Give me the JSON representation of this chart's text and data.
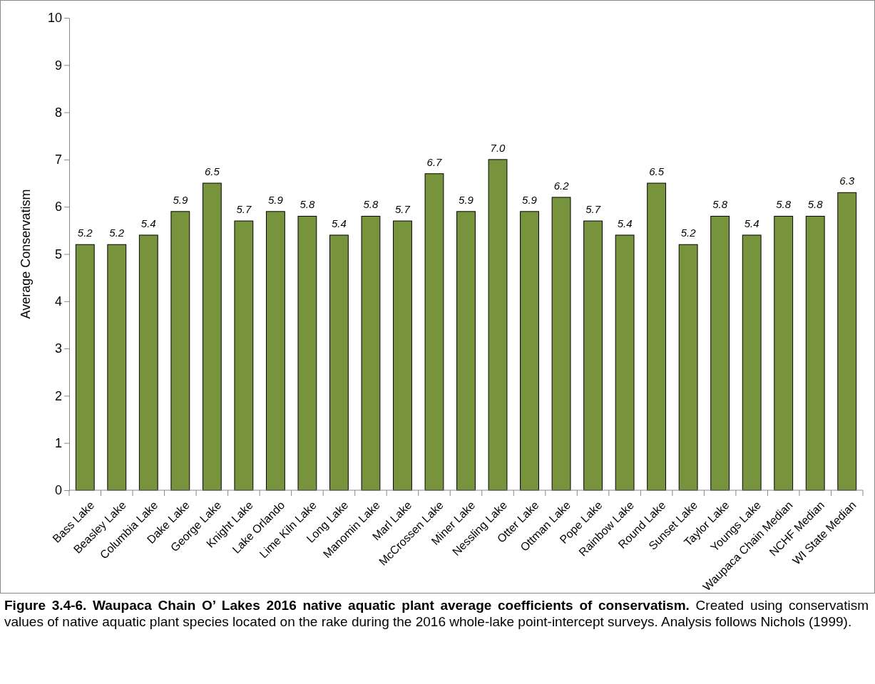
{
  "chart_data": {
    "type": "bar",
    "title": "Figure 3.4-6.  Waupaca Chain O’ Lakes 2016 native aquatic plant average coefficients of conservatism.",
    "subtitle": "Created using conservatism values of native aquatic plant species located on the rake during the 2016 whole-lake point-intercept surveys.  Analysis follows Nichols (1999).",
    "ylabel": "Average Conservatism",
    "categories": [
      "Bass Lake",
      "Beasley Lake",
      "Columbia Lake",
      "Dake Lake",
      "George Lake",
      "Knight Lake",
      "Lake Orlando",
      "Lime Kiln Lake",
      "Long Lake",
      "Manomin Lake",
      "Marl Lake",
      "McCrossen Lake",
      "Miner Lake",
      "Nessling Lake",
      "Otter Lake",
      "Ottman Lake",
      "Pope Lake",
      "Rainbow Lake",
      "Round Lake",
      "Sunset Lake",
      "Taylor Lake",
      "Youngs Lake",
      "Waupaca Chain Median",
      "NCHF Median",
      "WI State Median"
    ],
    "values": [
      5.2,
      5.2,
      5.4,
      5.9,
      6.5,
      5.7,
      5.9,
      5.8,
      5.4,
      5.8,
      5.7,
      6.7,
      5.9,
      7.0,
      5.9,
      6.2,
      5.7,
      5.4,
      6.5,
      5.2,
      5.8,
      5.4,
      5.8,
      5.8,
      6.3
    ],
    "value_labels": [
      "5.2",
      "5.2",
      "5.4",
      "5.9",
      "6.5",
      "5.7",
      "5.9",
      "5.8",
      "5.4",
      "5.8",
      "5.7",
      "6.7",
      "5.9",
      "7.0",
      "5.9",
      "6.2",
      "5.7",
      "5.4",
      "6.5",
      "5.2",
      "5.8",
      "5.4",
      "5.8",
      "5.8",
      "6.3"
    ],
    "color": "#77933c",
    "ylim": [
      0,
      10
    ],
    "yticks": [
      0,
      1,
      2,
      3,
      4,
      5,
      6,
      7,
      8,
      9,
      10
    ],
    "grid": false
  }
}
